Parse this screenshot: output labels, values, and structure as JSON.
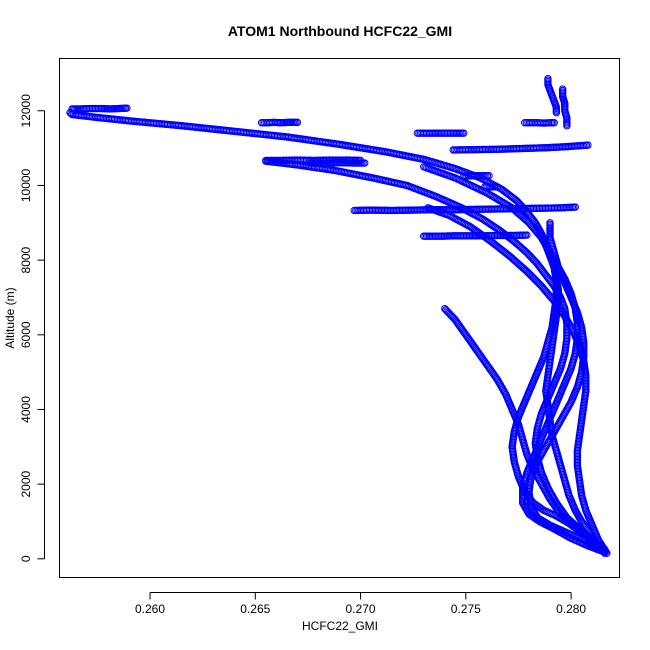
{
  "chart_data": {
    "type": "scatter",
    "title": "ATOM1 Northbound HCFC22_GMI",
    "xlabel": "HCFC22_GMI",
    "ylabel": "Altitude (m)",
    "xlim": [
      0.2557,
      0.2823
    ],
    "ylim": [
      -500,
      13400
    ],
    "x_ticks": [
      0.26,
      0.265,
      0.27,
      0.275,
      0.28
    ],
    "x_tick_labels": [
      "0.260",
      "0.265",
      "0.270",
      "0.275",
      "0.280"
    ],
    "y_ticks": [
      0,
      2000,
      4000,
      6000,
      8000,
      10000,
      12000
    ],
    "y_tick_labels": [
      "0",
      "2000",
      "4000",
      "6000",
      "8000",
      "10000",
      "12000"
    ],
    "grid": false,
    "legend": "none",
    "marker": "open-circle",
    "color": "#0000FF",
    "series": [
      {
        "x": [
          0.2816,
          0.2812,
          0.2809,
          0.2805,
          0.2802,
          0.2799,
          0.2797,
          0.2795,
          0.2793,
          0.2791,
          0.279,
          0.2789,
          0.2788,
          0.2789,
          0.279,
          0.2791,
          0.2792,
          0.2793,
          0.2794,
          0.2794,
          0.2793,
          0.2792,
          0.279,
          0.2788,
          0.2786,
          0.2783,
          0.2779,
          0.2774,
          0.2767,
          0.2757,
          0.2745,
          0.273,
          0.2712,
          0.269,
          0.2665,
          0.264,
          0.2615,
          0.2592,
          0.2575,
          0.2563,
          0.2562
        ],
        "y": [
          150,
          400,
          700,
          1000,
          1300,
          1700,
          2100,
          2500,
          2900,
          3300,
          3700,
          4100,
          4500,
          4900,
          5300,
          5700,
          6100,
          6500,
          6900,
          7200,
          7500,
          7800,
          8100,
          8400,
          8700,
          9000,
          9300,
          9600,
          9900,
          10200,
          10450,
          10700,
          10900,
          11100,
          11300,
          11450,
          11600,
          11720,
          11820,
          11900,
          11950
        ]
      },
      {
        "x": [
          0.2816,
          0.281,
          0.2804,
          0.2798,
          0.2793,
          0.2789,
          0.2786,
          0.2784,
          0.2783,
          0.2784,
          0.2786,
          0.2789,
          0.2792,
          0.2795,
          0.2797,
          0.2798,
          0.2798,
          0.2797,
          0.2795,
          0.2792,
          0.2788,
          0.2784,
          0.2779,
          0.2773,
          0.2766,
          0.2758,
          0.2748,
          0.2736,
          0.2722,
          0.2706,
          0.2688,
          0.267,
          0.2655
        ],
        "y": [
          200,
          500,
          800,
          1100,
          1500,
          1900,
          2300,
          2700,
          3100,
          3500,
          3900,
          4300,
          4700,
          5100,
          5500,
          5900,
          6300,
          6700,
          7000,
          7300,
          7600,
          7900,
          8200,
          8500,
          8800,
          9100,
          9400,
          9700,
          10000,
          10200,
          10400,
          10550,
          10650
        ]
      },
      {
        "x": [
          0.2815,
          0.2808,
          0.2801,
          0.2795,
          0.279,
          0.2786,
          0.2782,
          0.2779,
          0.2777,
          0.2775,
          0.2772,
          0.2769,
          0.2765,
          0.276,
          0.2755,
          0.275,
          0.2745,
          0.274
        ],
        "y": [
          300,
          600,
          900,
          1200,
          1600,
          2000,
          2400,
          2800,
          3200,
          3600,
          4000,
          4400,
          4800,
          5200,
          5600,
          6000,
          6400,
          6700
        ]
      },
      {
        "x": [
          0.2816,
          0.2811,
          0.2805,
          0.2799,
          0.2793,
          0.2787,
          0.2782,
          0.2778,
          0.2775,
          0.2773,
          0.2772,
          0.2773,
          0.2775,
          0.2778,
          0.2781,
          0.2784,
          0.2787,
          0.2789,
          0.2791,
          0.2792,
          0.2793,
          0.2793,
          0.2792,
          0.279,
          0.2786,
          0.278,
          0.2772,
          0.276,
          0.2745,
          0.273
        ],
        "y": [
          250,
          450,
          700,
          950,
          1150,
          1300,
          1500,
          1800,
          2200,
          2600,
          3000,
          3400,
          3800,
          4200,
          4600,
          5000,
          5400,
          5800,
          6200,
          6600,
          7000,
          7400,
          7800,
          8200,
          8600,
          9000,
          9400,
          9800,
          10200,
          10500
        ]
      },
      {
        "x": [
          0.2817,
          0.2813,
          0.281,
          0.2807,
          0.2805,
          0.2804,
          0.2803,
          0.2803,
          0.2804,
          0.2805,
          0.2806,
          0.2807,
          0.2807,
          0.2806,
          0.2804,
          0.2801,
          0.2797,
          0.2792,
          0.2786,
          0.2779,
          0.2771,
          0.2762,
          0.2752,
          0.2742,
          0.2732
        ],
        "y": [
          150,
          500,
          900,
          1300,
          1700,
          2100,
          2500,
          2900,
          3300,
          3700,
          4100,
          4500,
          4900,
          5300,
          5700,
          6100,
          6500,
          6900,
          7300,
          7700,
          8100,
          8500,
          8900,
          9200,
          9400
        ]
      },
      {
        "x": [
          0.2815,
          0.2808,
          0.28,
          0.2792,
          0.2785,
          0.278,
          0.2777,
          0.2777,
          0.2779,
          0.2782,
          0.2785,
          0.2788,
          0.2791,
          0.2794,
          0.2797,
          0.28,
          0.2802,
          0.2803,
          0.2803,
          0.2802,
          0.28,
          0.2797,
          0.2793,
          0.2789,
          0.2785
        ],
        "y": [
          200,
          350,
          550,
          800,
          1000,
          1200,
          1500,
          1900,
          2300,
          2700,
          3100,
          3500,
          3900,
          4300,
          4700,
          5100,
          5500,
          5900,
          6300,
          6700,
          7100,
          7500,
          7900,
          8300,
          8700
        ]
      },
      {
        "x": [
          0.2814,
          0.2806,
          0.2798,
          0.279,
          0.2784,
          0.2781,
          0.278,
          0.2781,
          0.2784,
          0.2788,
          0.2792,
          0.2796,
          0.28,
          0.2803,
          0.2805,
          0.2806,
          0.2806,
          0.2805,
          0.2803,
          0.28,
          0.2797,
          0.2794,
          0.2792,
          0.279,
          0.279
        ],
        "y": [
          250,
          500,
          700,
          900,
          1100,
          1400,
          1800,
          2200,
          2600,
          3000,
          3400,
          3800,
          4200,
          4600,
          5000,
          5400,
          5800,
          6200,
          6600,
          7000,
          7400,
          7800,
          8200,
          8600,
          9000
        ]
      },
      {
        "x": [
          0.2563,
          0.2567,
          0.2572,
          0.2577,
          0.2581,
          0.2585,
          0.2589
        ],
        "y": [
          12050,
          12050,
          12060,
          12060,
          12050,
          12060,
          12070
        ]
      },
      {
        "x": [
          0.2653,
          0.2656,
          0.2659,
          0.2662,
          0.2666,
          0.267
        ],
        "y": [
          11680,
          11680,
          11690,
          11680,
          11690,
          11690
        ]
      },
      {
        "x": [
          0.2655,
          0.2662,
          0.267,
          0.2678,
          0.2686,
          0.2694,
          0.27
        ],
        "y": [
          10670,
          10670,
          10680,
          10670,
          10680,
          10680,
          10670
        ]
      },
      {
        "x": [
          0.2676,
          0.2683,
          0.269,
          0.2697,
          0.2702
        ],
        "y": [
          10600,
          10600,
          10610,
          10600,
          10600
        ]
      },
      {
        "x": [
          0.2697,
          0.2705,
          0.2715,
          0.2725,
          0.2735,
          0.2745,
          0.2755,
          0.2765,
          0.2775,
          0.2785,
          0.2795,
          0.2802
        ],
        "y": [
          9330,
          9340,
          9330,
          9340,
          9350,
          9350,
          9360,
          9370,
          9380,
          9390,
          9400,
          9420
        ]
      },
      {
        "x": [
          0.273,
          0.2737,
          0.2744,
          0.2751,
          0.2758,
          0.2765,
          0.2772,
          0.2779
        ],
        "y": [
          8640,
          8640,
          8650,
          8650,
          8650,
          8660,
          8660,
          8670
        ]
      },
      {
        "x": [
          0.2727,
          0.2735,
          0.2742,
          0.2749
        ],
        "y": [
          11400,
          11400,
          11400,
          11400
        ]
      },
      {
        "x": [
          0.2744,
          0.2755,
          0.2766,
          0.2777,
          0.2788,
          0.2798,
          0.2808
        ],
        "y": [
          10950,
          10960,
          10970,
          10990,
          11010,
          11040,
          11080
        ]
      },
      {
        "x": [
          0.2778,
          0.2781,
          0.2784,
          0.2787,
          0.279,
          0.2792
        ],
        "y": [
          11680,
          11680,
          11680,
          11670,
          11680,
          11680
        ]
      },
      {
        "x": [
          0.2789,
          0.2789,
          0.279,
          0.2791,
          0.2792,
          0.2793,
          0.2793
        ],
        "y": [
          12860,
          12700,
          12550,
          12400,
          12250,
          12100,
          11950
        ]
      },
      {
        "x": [
          0.2796,
          0.2796,
          0.2797,
          0.2797,
          0.2798,
          0.2798
        ],
        "y": [
          12580,
          12380,
          12200,
          12000,
          11800,
          11600
        ]
      },
      {
        "x": [
          0.2759,
          0.2762,
          0.2765
        ],
        "y": [
          9960,
          9960,
          9960
        ]
      },
      {
        "x": [
          0.2749,
          0.2755,
          0.2761
        ],
        "y": [
          10250,
          10260,
          10260
        ]
      }
    ]
  }
}
